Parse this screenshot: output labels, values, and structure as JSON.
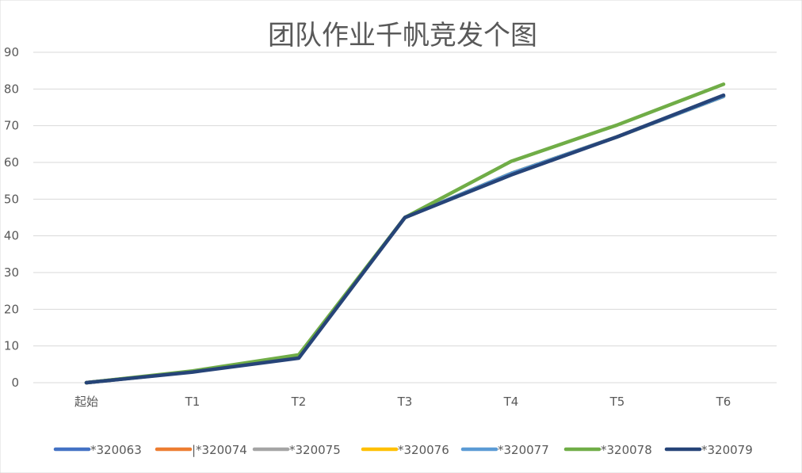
{
  "chart_data": {
    "type": "line",
    "title": "团队作业千帆竞发个图",
    "xlabel": "",
    "ylabel": "",
    "categories": [
      "起始",
      "T1",
      "T2",
      "T3",
      "T4",
      "T5",
      "T6"
    ],
    "ylim": [
      0,
      90
    ],
    "yticks": [
      0,
      10,
      20,
      30,
      40,
      50,
      60,
      70,
      80,
      90
    ],
    "grid": true,
    "legend_position": "bottom",
    "series": [
      {
        "name": "*320063",
        "color": "#4472C4",
        "values": [
          0,
          3,
          7,
          45,
          57,
          67,
          78
        ]
      },
      {
        "name": "|*320074",
        "color": "#ED7D31",
        "values": [
          0,
          3,
          7,
          45,
          57,
          67,
          78
        ]
      },
      {
        "name": "*320075",
        "color": "#A5A5A5",
        "values": [
          0,
          3,
          7,
          45,
          57,
          67,
          78
        ]
      },
      {
        "name": "*320076",
        "color": "#FFC000",
        "values": [
          0,
          3,
          7,
          45,
          57,
          67,
          78
        ]
      },
      {
        "name": "*320077",
        "color": "#5B9BD5",
        "values": [
          0,
          3,
          7,
          45,
          57,
          67,
          78
        ]
      },
      {
        "name": "*320078",
        "color": "#70AD47",
        "values": [
          0,
          3.2,
          7.6,
          45,
          60.3,
          70.2,
          81.3
        ]
      },
      {
        "name": "*320079",
        "color": "#264478",
        "values": [
          0,
          2.9,
          6.7,
          45,
          56.6,
          67,
          78.3
        ]
      }
    ]
  }
}
